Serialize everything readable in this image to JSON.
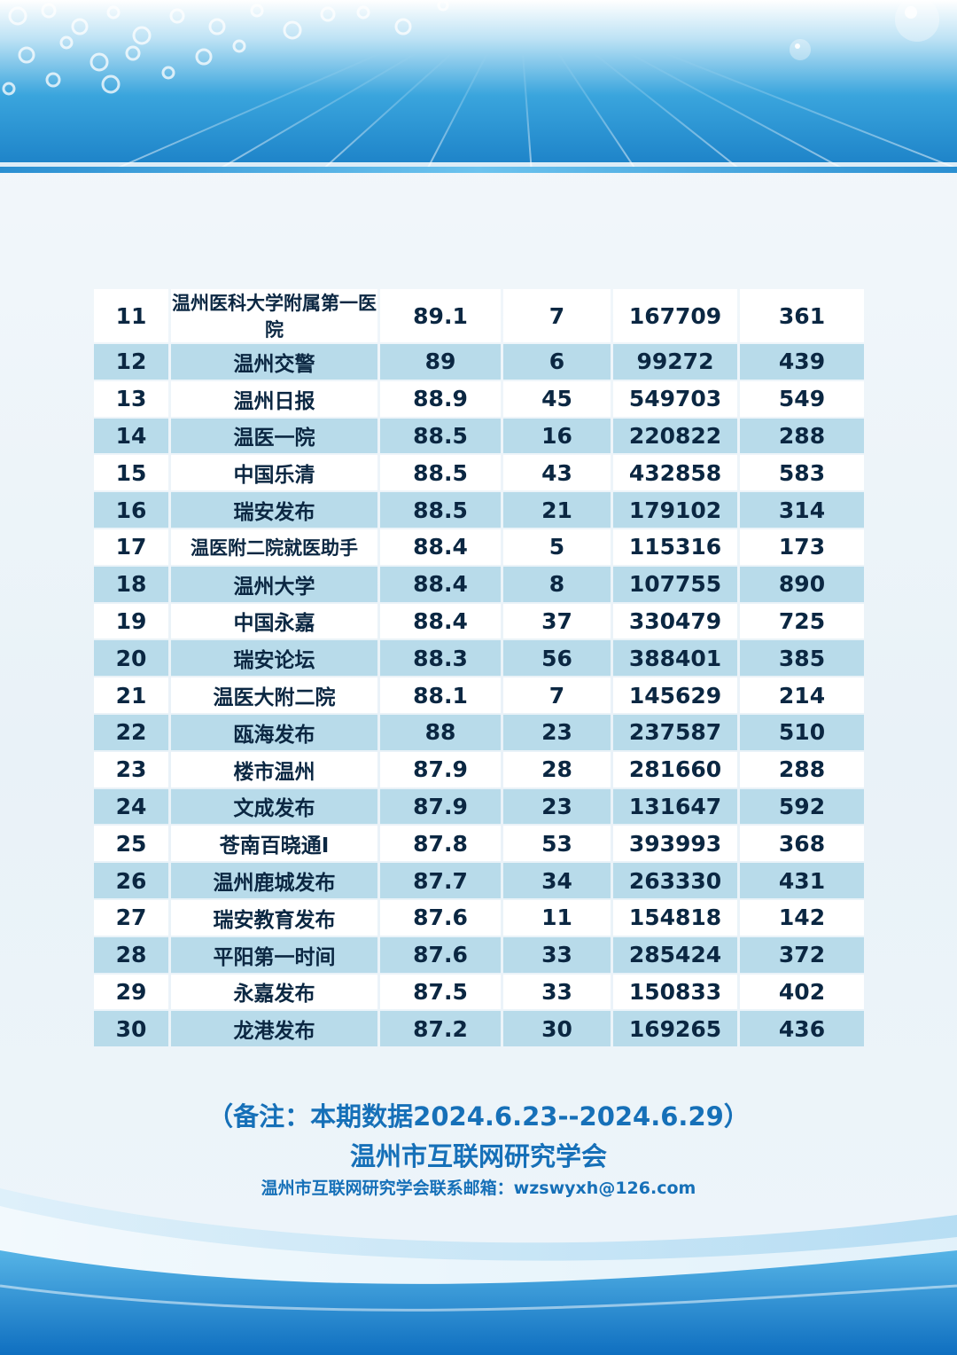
{
  "table": {
    "rows": [
      {
        "rank": "11",
        "name": "温州医科大学附属第一医院",
        "score": "89.1",
        "posts": "7",
        "reads": "167709",
        "likes": "361"
      },
      {
        "rank": "12",
        "name": "温州交警",
        "score": "89",
        "posts": "6",
        "reads": "99272",
        "likes": "439"
      },
      {
        "rank": "13",
        "name": "温州日报",
        "score": "88.9",
        "posts": "45",
        "reads": "549703",
        "likes": "549"
      },
      {
        "rank": "14",
        "name": "温医一院",
        "score": "88.5",
        "posts": "16",
        "reads": "220822",
        "likes": "288"
      },
      {
        "rank": "15",
        "name": "中国乐清",
        "score": "88.5",
        "posts": "43",
        "reads": "432858",
        "likes": "583"
      },
      {
        "rank": "16",
        "name": "瑞安发布",
        "score": "88.5",
        "posts": "21",
        "reads": "179102",
        "likes": "314"
      },
      {
        "rank": "17",
        "name": "温医附二院就医助手",
        "score": "88.4",
        "posts": "5",
        "reads": "115316",
        "likes": "173"
      },
      {
        "rank": "18",
        "name": "温州大学",
        "score": "88.4",
        "posts": "8",
        "reads": "107755",
        "likes": "890"
      },
      {
        "rank": "19",
        "name": "中国永嘉",
        "score": "88.4",
        "posts": "37",
        "reads": "330479",
        "likes": "725"
      },
      {
        "rank": "20",
        "name": "瑞安论坛",
        "score": "88.3",
        "posts": "56",
        "reads": "388401",
        "likes": "385"
      },
      {
        "rank": "21",
        "name": "温医大附二院",
        "score": "88.1",
        "posts": "7",
        "reads": "145629",
        "likes": "214"
      },
      {
        "rank": "22",
        "name": "瓯海发布",
        "score": "88",
        "posts": "23",
        "reads": "237587",
        "likes": "510"
      },
      {
        "rank": "23",
        "name": "楼市温州",
        "score": "87.9",
        "posts": "28",
        "reads": "281660",
        "likes": "288"
      },
      {
        "rank": "24",
        "name": "文成发布",
        "score": "87.9",
        "posts": "23",
        "reads": "131647",
        "likes": "592"
      },
      {
        "rank": "25",
        "name": "苍南百晓通I",
        "score": "87.8",
        "posts": "53",
        "reads": "393993",
        "likes": "368"
      },
      {
        "rank": "26",
        "name": "温州鹿城发布",
        "score": "87.7",
        "posts": "34",
        "reads": "263330",
        "likes": "431"
      },
      {
        "rank": "27",
        "name": "瑞安教育发布",
        "score": "87.6",
        "posts": "11",
        "reads": "154818",
        "likes": "142"
      },
      {
        "rank": "28",
        "name": "平阳第一时间",
        "score": "87.6",
        "posts": "33",
        "reads": "285424",
        "likes": "372"
      },
      {
        "rank": "29",
        "name": "永嘉发布",
        "score": "87.5",
        "posts": "33",
        "reads": "150833",
        "likes": "402"
      },
      {
        "rank": "30",
        "name": "龙港发布",
        "score": "87.2",
        "posts": "30",
        "reads": "169265",
        "likes": "436"
      }
    ]
  },
  "footer": {
    "note": "（备注：本期数据2024.6.23--2024.6.29）",
    "organization": "温州市互联网研究学会",
    "contact": "温州市互联网研究学会联系邮箱：wzswyxh@126.com"
  },
  "colors": {
    "row_odd": "#ffffff",
    "row_even": "#b8dbea",
    "text": "#0b2742",
    "footer_text": "#1670b8",
    "banner_blue": "#1a7fc6"
  }
}
